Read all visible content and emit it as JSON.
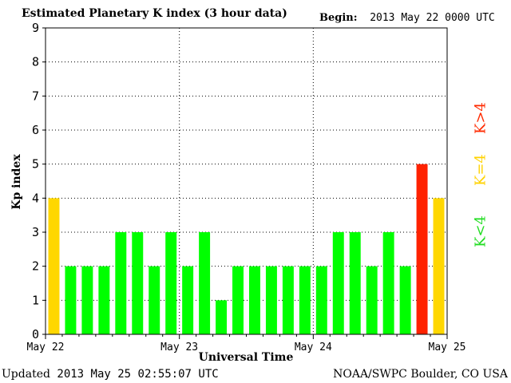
{
  "header": {
    "title": "Estimated Planetary K index (3 hour data)",
    "begin_label": "Begin:",
    "begin_value": "2013 May 22 0000 UTC"
  },
  "footer": {
    "updated_label": "Updated",
    "updated_value": "2013 May 25 02:55:07 UTC",
    "credit": "NOAA/SWPC Boulder, CO USA"
  },
  "legend": {
    "low": "K<4",
    "mid": "K=4",
    "high": "K>4"
  },
  "colors": {
    "low": "#00ff00",
    "mid": "#ffd700",
    "high": "#ff2200"
  },
  "chart_data": {
    "type": "bar",
    "title": "Estimated Planetary K index (3 hour data)",
    "xlabel": "Universal Time",
    "ylabel": "Kp index",
    "ylim": [
      0,
      9
    ],
    "yticks": [
      0,
      1,
      2,
      3,
      4,
      5,
      6,
      7,
      8,
      9
    ],
    "xtick_labels": [
      "May 22",
      "May 23",
      "May 24",
      "May 25"
    ],
    "interval_hours": 3,
    "values": [
      4,
      2,
      2,
      2,
      3,
      3,
      2,
      3,
      2,
      3,
      1,
      2,
      2,
      2,
      2,
      2,
      2,
      3,
      3,
      2,
      3,
      2,
      5,
      4
    ],
    "grid": true,
    "legend_placement": "right"
  }
}
